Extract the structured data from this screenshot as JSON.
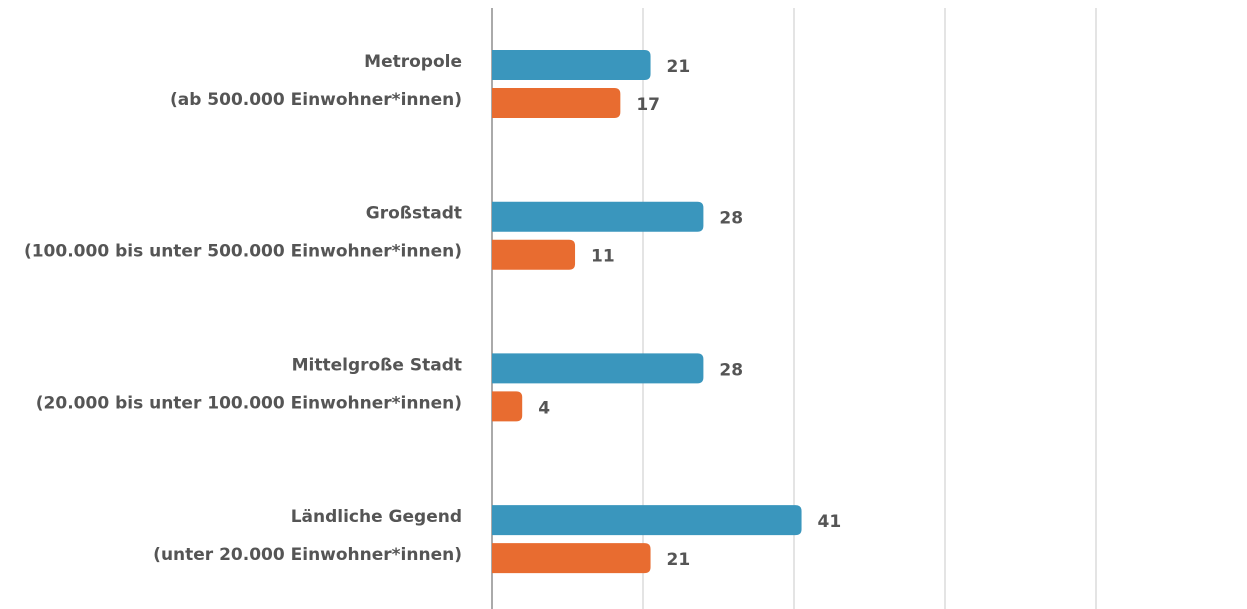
{
  "chart_data": {
    "type": "bar",
    "orientation": "horizontal",
    "categories": [
      [
        "Metropole",
        "(ab 500.000 Einwohner*innen)"
      ],
      [
        "Großstadt",
        "(100.000 bis unter 500.000 Einwohner*innen)"
      ],
      [
        "Mittelgroße Stadt",
        "(20.000 bis unter 100.000 Einwohner*innen)"
      ],
      [
        "Ländliche Gegend",
        "(unter 20.000 Einwohner*innen)"
      ]
    ],
    "series": [
      {
        "color": "#3a96bd",
        "values": [
          21,
          28,
          28,
          41
        ]
      },
      {
        "color": "#e86c30",
        "values": [
          17,
          11,
          4,
          21
        ]
      }
    ],
    "xlim": [
      0,
      100
    ],
    "xticks": [
      0,
      20,
      40,
      60,
      80
    ],
    "grid": true
  }
}
